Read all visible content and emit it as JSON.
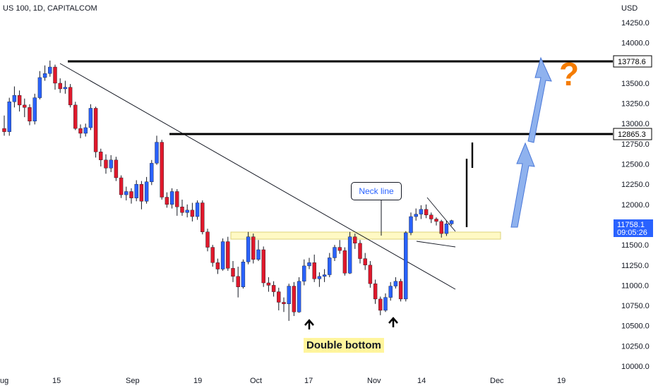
{
  "header": {
    "symbol": "US 100, 1D, CAPITALCOM",
    "currency": "USD"
  },
  "chart_data": {
    "type": "candlestick",
    "y_ticks": [
      "14250.0",
      "14000.0",
      "13750.0",
      "13500.0",
      "13250.0",
      "13000.0",
      "12750.0",
      "12500.0",
      "12250.0",
      "12000.0",
      "11750.0",
      "11500.0",
      "11250.0",
      "11000.0",
      "10750.0",
      "10500.0",
      "10250.0",
      "10000.0"
    ],
    "x_ticks": [
      "ug",
      "15",
      "Sep",
      "19",
      "Oct",
      "17",
      "Nov",
      "14",
      "Dec",
      "19"
    ],
    "ylim": [
      9950,
      14350
    ],
    "candles": [
      [
        12940,
        12900,
        13100,
        12850
      ],
      [
        12900,
        13270,
        13320,
        12850
      ],
      [
        13270,
        13350,
        13460,
        13200
      ],
      [
        13350,
        13230,
        13410,
        13150
      ],
      [
        13230,
        13200,
        13310,
        13080
      ],
      [
        13200,
        13030,
        13240,
        12980
      ],
      [
        13030,
        13320,
        13370,
        12990
      ],
      [
        13320,
        13570,
        13650,
        13300
      ],
      [
        13570,
        13620,
        13720,
        13530
      ],
      [
        13620,
        13700,
        13780,
        13580
      ],
      [
        13700,
        13500,
        13730,
        13420
      ],
      [
        13500,
        13430,
        13560,
        13380
      ],
      [
        13430,
        13450,
        13530,
        13370
      ],
      [
        13450,
        13230,
        13490,
        13200
      ],
      [
        13230,
        12940,
        13270,
        12920
      ],
      [
        12940,
        12880,
        12990,
        12820
      ],
      [
        12880,
        12950,
        13000,
        12840
      ],
      [
        12950,
        13190,
        13240,
        12920
      ],
      [
        13190,
        12650,
        13210,
        12580
      ],
      [
        12650,
        12550,
        12690,
        12470
      ],
      [
        12550,
        12450,
        12620,
        12380
      ],
      [
        12450,
        12550,
        12610,
        12400
      ],
      [
        12550,
        12330,
        12590,
        12290
      ],
      [
        12330,
        12120,
        12360,
        12080
      ],
      [
        12120,
        12160,
        12220,
        12050
      ],
      [
        12160,
        12080,
        12200,
        12010
      ],
      [
        12080,
        12250,
        12300,
        12040
      ],
      [
        12250,
        12040,
        12290,
        11940
      ],
      [
        12040,
        12280,
        12340,
        12010
      ],
      [
        12280,
        12510,
        12550,
        12240
      ],
      [
        12510,
        12770,
        12850,
        12490
      ],
      [
        12770,
        12090,
        12800,
        12060
      ],
      [
        12090,
        12000,
        12150,
        11960
      ],
      [
        12000,
        12160,
        12200,
        11950
      ],
      [
        12160,
        11970,
        12190,
        11860
      ],
      [
        11970,
        11900,
        12060,
        11860
      ],
      [
        11900,
        11930,
        12000,
        11840
      ],
      [
        11930,
        11850,
        12020,
        11790
      ],
      [
        11850,
        12020,
        12050,
        11810
      ],
      [
        12020,
        11660,
        12050,
        11630
      ],
      [
        11660,
        11470,
        11700,
        11420
      ],
      [
        11470,
        11280,
        11500,
        11230
      ],
      [
        11280,
        11200,
        11330,
        11140
      ],
      [
        11200,
        11540,
        11580,
        11180
      ],
      [
        11540,
        11210,
        11600,
        11180
      ],
      [
        11210,
        11110,
        11300,
        11040
      ],
      [
        11110,
        10980,
        11230,
        10850
      ],
      [
        10980,
        11290,
        11320,
        10960
      ],
      [
        11290,
        11600,
        11660,
        11260
      ],
      [
        11600,
        11320,
        11640,
        11270
      ],
      [
        11320,
        11440,
        11560,
        11300
      ],
      [
        11440,
        11030,
        11480,
        10980
      ],
      [
        11030,
        11000,
        11100,
        10920
      ],
      [
        11000,
        10920,
        11050,
        10860
      ],
      [
        10920,
        10790,
        10970,
        10690
      ],
      [
        10790,
        10770,
        10850,
        10670
      ],
      [
        10770,
        10990,
        11020,
        10560
      ],
      [
        10990,
        10670,
        11040,
        10620
      ],
      [
        10670,
        11050,
        11100,
        10660
      ],
      [
        11050,
        11240,
        11320,
        11000
      ],
      [
        11240,
        11280,
        11340,
        11200
      ],
      [
        11280,
        11080,
        11380,
        11040
      ],
      [
        11080,
        11110,
        11160,
        10980
      ],
      [
        11110,
        11130,
        11200,
        11040
      ],
      [
        11130,
        11340,
        11400,
        11100
      ],
      [
        11340,
        11470,
        11500,
        11300
      ],
      [
        11470,
        11430,
        11560,
        11390
      ],
      [
        11430,
        11150,
        11470,
        11120
      ],
      [
        11150,
        11600,
        11660,
        11140
      ],
      [
        11600,
        11520,
        11640,
        11450
      ],
      [
        11520,
        11330,
        11560,
        11270
      ],
      [
        11330,
        11250,
        11400,
        11190
      ],
      [
        11250,
        11020,
        11300,
        10970
      ],
      [
        11020,
        10830,
        11070,
        10770
      ],
      [
        10830,
        10690,
        10860,
        10630
      ],
      [
        10690,
        10850,
        10900,
        10670
      ],
      [
        10850,
        10990,
        11040,
        10810
      ],
      [
        10990,
        11050,
        11100,
        10960
      ],
      [
        11050,
        10830,
        11080,
        10800
      ],
      [
        10830,
        11650,
        11670,
        10800
      ],
      [
        11650,
        11850,
        11900,
        11620
      ],
      [
        11850,
        11880,
        11950,
        11800
      ],
      [
        11880,
        11940,
        11990,
        11820
      ],
      [
        11940,
        11870,
        12000,
        11830
      ],
      [
        11870,
        11820,
        11900,
        11770
      ],
      [
        11820,
        11790,
        11840,
        11740
      ],
      [
        11790,
        11640,
        11810,
        11590
      ],
      [
        11640,
        11760,
        11800,
        11610
      ],
      [
        11760,
        11800,
        11810,
        11740
      ]
    ]
  },
  "levels": {
    "upper": "13778.6",
    "middle": "12865.3"
  },
  "last_price": {
    "value": "11758.1",
    "countdown": "09:05:26"
  },
  "annotations": {
    "neck_line": "Neck line",
    "double_bottom": "Double bottom",
    "question": "?"
  },
  "colors": {
    "up": "#2962ff",
    "down": "#e0182b",
    "zone": "#fff9c4",
    "zone_border": "#ddd37a",
    "arrow": "#90b4f0",
    "question": "#f57c00",
    "price_label": "#2962ff"
  }
}
